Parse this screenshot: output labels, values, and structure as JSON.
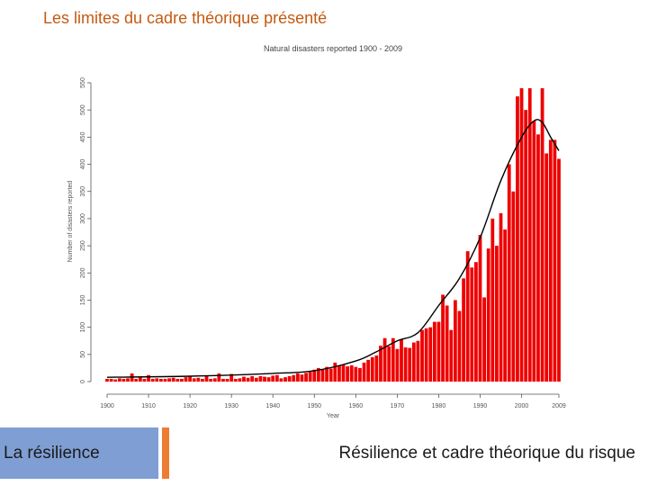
{
  "slide": {
    "title": "Les limites du cadre théorique présenté"
  },
  "footer": {
    "left_tab": "La résilience",
    "right_tab": "Résilience et cadre théorique du risque"
  },
  "chart_data": {
    "type": "bar",
    "title": "Natural disasters reported 1900 - 2009",
    "xlabel": "Year",
    "ylabel": "Number of disasters reported",
    "xlim": [
      1900,
      2009
    ],
    "ylim": [
      0,
      550
    ],
    "x_ticks": [
      1900,
      1910,
      1920,
      1930,
      1940,
      1950,
      1960,
      1970,
      1980,
      1990,
      2000,
      2009
    ],
    "x_tick_labels": [
      "1900",
      "1910",
      "1920",
      "1930",
      "1940",
      "1950",
      "1960",
      "1970",
      "1980",
      "1990",
      "2000",
      "2009"
    ],
    "y_ticks": [
      0,
      50,
      100,
      150,
      200,
      250,
      300,
      350,
      400,
      450,
      500,
      550
    ],
    "grid": false,
    "bar_color": "#ee0000",
    "trend_color": "#000000",
    "years": [
      1900,
      1901,
      1902,
      1903,
      1904,
      1905,
      1906,
      1907,
      1908,
      1909,
      1910,
      1911,
      1912,
      1913,
      1914,
      1915,
      1916,
      1917,
      1918,
      1919,
      1920,
      1921,
      1922,
      1923,
      1924,
      1925,
      1926,
      1927,
      1928,
      1929,
      1930,
      1931,
      1932,
      1933,
      1934,
      1935,
      1936,
      1937,
      1938,
      1939,
      1940,
      1941,
      1942,
      1943,
      1944,
      1945,
      1946,
      1947,
      1948,
      1949,
      1950,
      1951,
      1952,
      1953,
      1954,
      1955,
      1956,
      1957,
      1958,
      1959,
      1960,
      1961,
      1962,
      1963,
      1964,
      1965,
      1966,
      1967,
      1968,
      1969,
      1970,
      1971,
      1972,
      1973,
      1974,
      1975,
      1976,
      1977,
      1978,
      1979,
      1980,
      1981,
      1982,
      1983,
      1984,
      1985,
      1986,
      1987,
      1988,
      1989,
      1990,
      1991,
      1992,
      1993,
      1994,
      1995,
      1996,
      1997,
      1998,
      1999,
      2000,
      2001,
      2002,
      2003,
      2004,
      2005,
      2006,
      2007,
      2008,
      2009
    ],
    "values": [
      5,
      5,
      4,
      6,
      5,
      6,
      15,
      5,
      8,
      5,
      12,
      5,
      6,
      5,
      5,
      6,
      7,
      5,
      5,
      8,
      9,
      6,
      7,
      5,
      10,
      5,
      6,
      15,
      5,
      5,
      14,
      5,
      6,
      9,
      7,
      10,
      7,
      10,
      9,
      8,
      11,
      12,
      6,
      8,
      10,
      12,
      15,
      13,
      16,
      18,
      22,
      25,
      22,
      27,
      24,
      35,
      30,
      31,
      28,
      30,
      27,
      25,
      35,
      40,
      45,
      48,
      66,
      80,
      65,
      80,
      60,
      78,
      63,
      62,
      72,
      75,
      95,
      98,
      100,
      110,
      110,
      160,
      140,
      95,
      150,
      130,
      190,
      240,
      210,
      220,
      270,
      155,
      245,
      300,
      250,
      310,
      280,
      400,
      350,
      525,
      540,
      500,
      540,
      480,
      455,
      540,
      420,
      445,
      445,
      410
    ],
    "trend": [
      [
        1900,
        8
      ],
      [
        1920,
        10
      ],
      [
        1940,
        15
      ],
      [
        1950,
        20
      ],
      [
        1960,
        38
      ],
      [
        1965,
        55
      ],
      [
        1970,
        75
      ],
      [
        1975,
        90
      ],
      [
        1980,
        140
      ],
      [
        1985,
        190
      ],
      [
        1990,
        265
      ],
      [
        1995,
        370
      ],
      [
        2000,
        450
      ],
      [
        2003,
        480
      ],
      [
        2005,
        477
      ],
      [
        2007,
        450
      ],
      [
        2009,
        425
      ]
    ]
  }
}
